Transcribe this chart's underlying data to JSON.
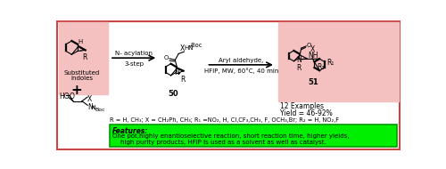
{
  "bg_color": "#ffffff",
  "border_color": "#cc4444",
  "reactant_box_color": "#f5c0c0",
  "product_box_color": "#f5c0c0",
  "features_box_color": "#00ee00",
  "features_text_line1": "One pot,highly enantioselective reaction, short reaction time, higher yields,",
  "features_text_line2": "    high purity products, HFIP is used as a solvent as well as catalyst.",
  "features_label": "Features:",
  "r_label": "R = H, CH₃; X = CH₂Ph, CH₃; R₁ =NO₂, H, Cl,CF₃,CH₃, F, OCH₃,Br; R₂ = H, NO₂,F",
  "step1_line1": "N- acylation",
  "step1_line2": "3-step",
  "step2_line1": "Aryl aldehyde,",
  "step2_line2": "HFIP, MW, 60°C, 40 min",
  "compound50": "50",
  "compound51": "51",
  "yield_line1": "12 Examples",
  "yield_line2": "Yield = 46-92%",
  "substituted": "Substituted",
  "indoles": "indoles"
}
